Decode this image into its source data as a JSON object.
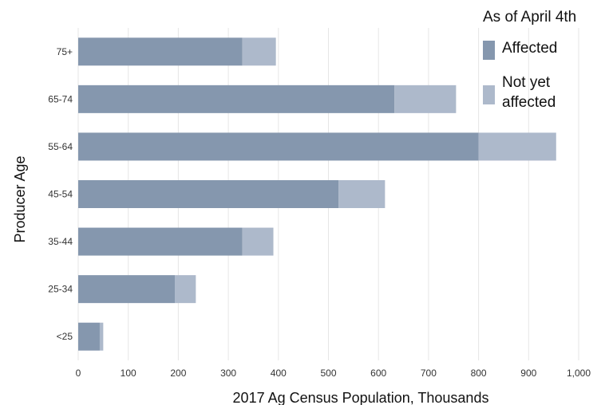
{
  "chart_data": {
    "type": "bar",
    "orientation": "horizontal",
    "stacked": true,
    "categories": [
      "75+",
      "65-74",
      "55-64",
      "45-54",
      "35-44",
      "25-34",
      "<25"
    ],
    "series": [
      {
        "name": "Affected",
        "color": "#8597ae",
        "values": [
          328,
          632,
          800,
          520,
          328,
          193,
          43
        ]
      },
      {
        "name": "Not yet affected",
        "color": "#adb9cb",
        "values": [
          67,
          123,
          155,
          93,
          62,
          42,
          7
        ]
      }
    ],
    "xlabel": "2017 Ag Census Population, Thousands",
    "ylabel": "Producer Age",
    "xlim": [
      0,
      1000
    ],
    "xticks": [
      "0",
      "100",
      "200",
      "300",
      "400",
      "500",
      "600",
      "700",
      "800",
      "900",
      "1,000"
    ],
    "legend": {
      "title": "As of April 4th",
      "placement": "top-right",
      "entries": [
        "Affected",
        "Not yet",
        "affected"
      ]
    },
    "grid": "vertical"
  }
}
